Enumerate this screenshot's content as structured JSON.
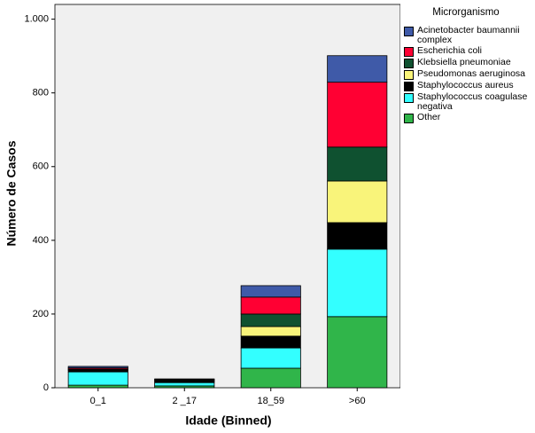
{
  "chart_data": {
    "type": "stacked_bar",
    "x_label": "Idade (Binned)",
    "y_label": "Número de Casos",
    "legend_title": "Microrganismo",
    "categories": [
      "0_1",
      "2 _17",
      "18_59",
      ">60"
    ],
    "series": [
      {
        "name": "Other",
        "color": "#30b54a",
        "values": [
          7,
          5,
          53,
          193
        ]
      },
      {
        "name": "Staphylococcus coagulase negativa",
        "color": "#33ffff",
        "values": [
          36,
          9,
          55,
          183
        ]
      },
      {
        "name": "Staphylococcus aureus",
        "color": "#000000",
        "values": [
          4,
          3,
          32,
          72
        ]
      },
      {
        "name": "Pseudomonas aeruginosa",
        "color": "#f9f47a",
        "values": [
          2,
          2,
          26,
          113
        ]
      },
      {
        "name": "Klebsiella pneumoniae",
        "color": "#0f5130",
        "values": [
          2,
          2,
          34,
          92
        ]
      },
      {
        "name": "Escherichia coli",
        "color": "#ff0033",
        "values": [
          3,
          2,
          46,
          176
        ]
      },
      {
        "name": "Acinetobacter baumannii complex",
        "color": "#3f5aa8",
        "values": [
          4,
          1,
          31,
          72
        ]
      }
    ],
    "ylim": [
      0,
      1040
    ],
    "yticks": [
      0,
      200,
      400,
      600,
      800,
      {
        "value": 1000,
        "label": "1.000"
      }
    ]
  }
}
